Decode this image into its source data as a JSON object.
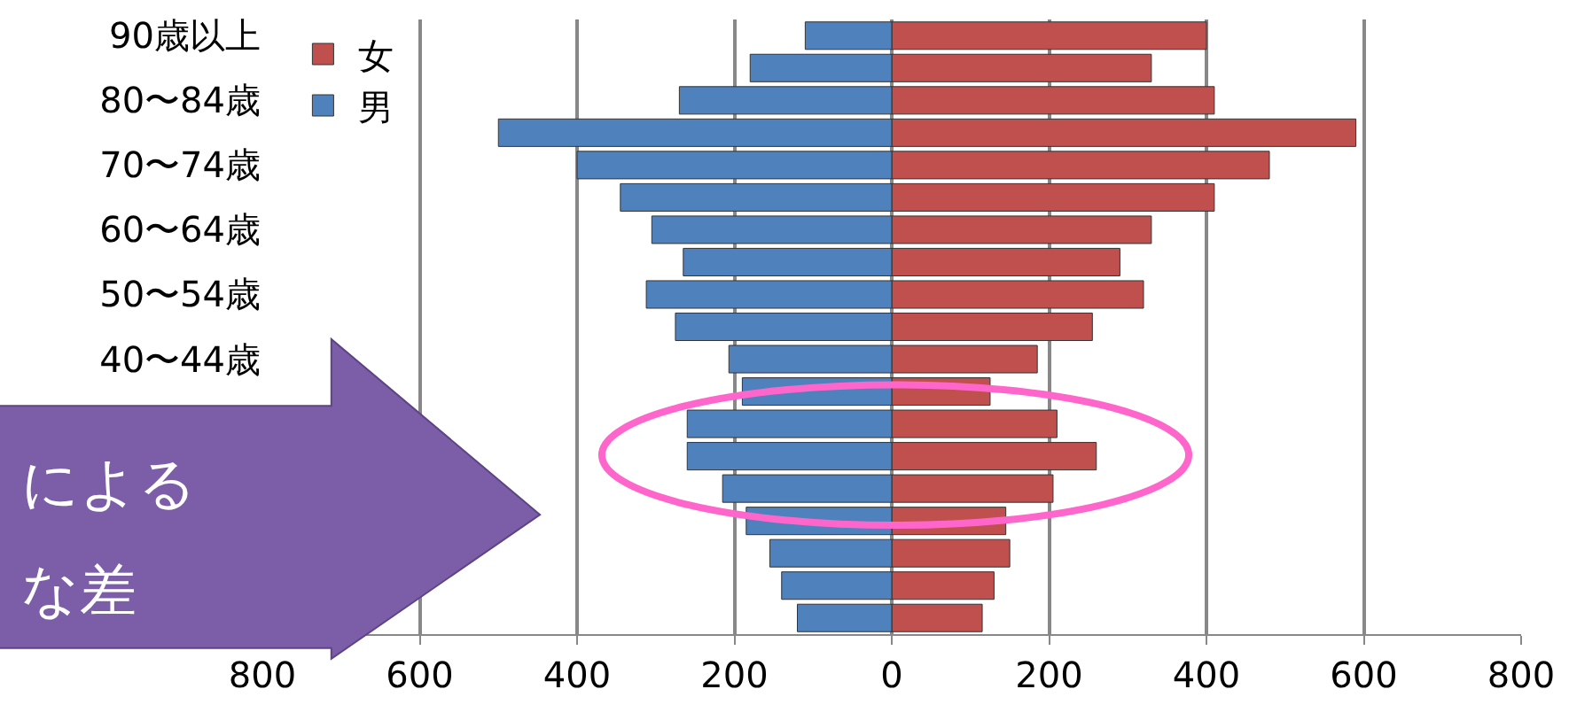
{
  "chart_data": {
    "type": "bar",
    "orientation": "horizontal",
    "categories": [
      "90歳以上",
      null,
      "80〜84歳",
      null,
      "70〜74歳",
      null,
      "60〜64歳",
      null,
      "50〜54歳",
      null,
      "40〜44歳",
      null,
      null,
      null,
      null,
      null,
      null,
      null,
      null
    ],
    "series": [
      {
        "name": "女",
        "color": "#c0504d",
        "values": [
          400,
          330,
          410,
          590,
          480,
          410,
          330,
          290,
          320,
          255,
          185,
          125,
          210,
          260,
          205,
          145,
          150,
          130,
          115
        ]
      },
      {
        "name": "男",
        "color": "#4f81bd",
        "values": [
          -110,
          -180,
          -270,
          -500,
          -400,
          -345,
          -305,
          -265,
          -312,
          -275,
          -207,
          -190,
          -260,
          -260,
          -215,
          -185,
          -155,
          -140,
          -120
        ]
      }
    ],
    "xlim": [
      -800,
      800
    ],
    "xticks": [
      {
        "value": -800,
        "label": "800"
      },
      {
        "value": -600,
        "label": "600"
      },
      {
        "value": -400,
        "label": "400"
      },
      {
        "value": -200,
        "label": "200"
      },
      0,
      200,
      400,
      600,
      800
    ],
    "stacked": true,
    "grid": "x",
    "legend": "top left",
    "annotations": [
      "による",
      "な差"
    ]
  }
}
